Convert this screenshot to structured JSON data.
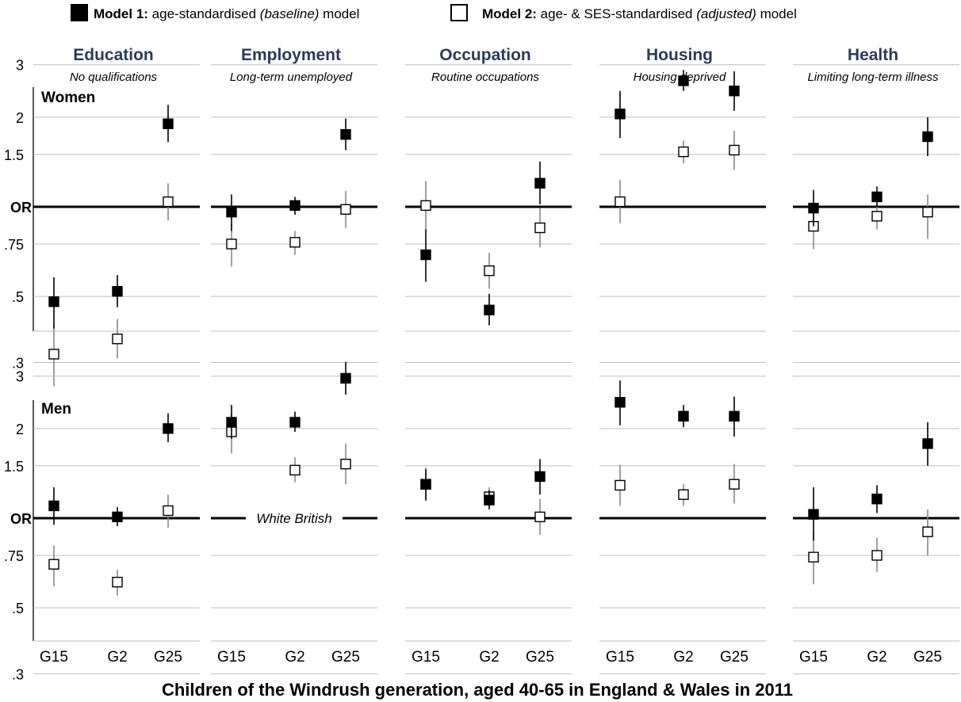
{
  "chart_data": {
    "type": "scatter",
    "legend": {
      "placement": "top",
      "items": [
        {
          "key": "m1",
          "bold": "Model 1:",
          "text": " age-standardised ",
          "italic": "(baseline)",
          "suffix": " model",
          "marker": "filled"
        },
        {
          "key": "m2",
          "bold": "Model 2:",
          "text": " age- & SES-standardised ",
          "italic": "(adjusted)",
          "suffix": " model",
          "marker": "hollow"
        }
      ]
    },
    "xlabel": "Children of the Windrush generation, aged 40-65 in England & Wales in 2011",
    "categories": [
      "G15",
      "G2",
      "G25"
    ],
    "reference_label": "OR",
    "reference_value": 1,
    "reference_note": "White British",
    "y_scale": "log",
    "ylim": [
      0.2,
      3.7
    ],
    "yticks": [
      {
        "value": 3,
        "label": "3"
      },
      {
        "value": 2,
        "label": "2"
      },
      {
        "value": 1.5,
        "label": "1.5"
      },
      {
        "value": 0.75,
        "label": ".75"
      },
      {
        "value": 0.5,
        "label": ".5"
      },
      {
        "value": 0.3,
        "label": ".3"
      }
    ],
    "grid": true,
    "rows": [
      {
        "label": "Women"
      },
      {
        "label": "Men"
      }
    ],
    "panels": [
      {
        "title": "Education",
        "subtitle": "No qualifications",
        "women": {
          "m1": [
            {
              "or": 0.48,
              "lo": 0.39,
              "hi": 0.58
            },
            {
              "or": 0.52,
              "lo": 0.46,
              "hi": 0.59
            },
            {
              "or": 1.9,
              "lo": 1.65,
              "hi": 2.2
            }
          ],
          "m2": [
            {
              "or": 0.32,
              "lo": 0.25,
              "hi": 0.4
            },
            {
              "or": 0.36,
              "lo": 0.31,
              "hi": 0.42
            },
            {
              "or": 1.04,
              "lo": 0.9,
              "hi": 1.2
            }
          ]
        },
        "men": {
          "m1": [
            {
              "or": 1.1,
              "lo": 0.95,
              "hi": 1.27
            },
            {
              "or": 1.01,
              "lo": 0.94,
              "hi": 1.09
            },
            {
              "or": 2.0,
              "lo": 1.8,
              "hi": 2.25
            }
          ],
          "m2": [
            {
              "or": 0.7,
              "lo": 0.59,
              "hi": 0.81
            },
            {
              "or": 0.61,
              "lo": 0.55,
              "hi": 0.67
            },
            {
              "or": 1.06,
              "lo": 0.93,
              "hi": 1.2
            }
          ]
        }
      },
      {
        "title": "Employment",
        "subtitle": "Long-term unemployed",
        "women": {
          "m1": [
            {
              "or": 0.96,
              "lo": 0.83,
              "hi": 1.1
            },
            {
              "or": 1.01,
              "lo": 0.94,
              "hi": 1.08
            },
            {
              "or": 1.75,
              "lo": 1.55,
              "hi": 1.98
            }
          ],
          "m2": [
            {
              "or": 0.75,
              "lo": 0.63,
              "hi": 0.88
            },
            {
              "or": 0.76,
              "lo": 0.69,
              "hi": 0.83
            },
            {
              "or": 0.98,
              "lo": 0.85,
              "hi": 1.13
            }
          ]
        },
        "men": {
          "m1": [
            {
              "or": 2.1,
              "lo": 1.85,
              "hi": 2.4
            },
            {
              "or": 2.1,
              "lo": 1.95,
              "hi": 2.28
            },
            {
              "or": 2.95,
              "lo": 2.6,
              "hi": 3.35
            }
          ],
          "m2": [
            {
              "or": 1.95,
              "lo": 1.65,
              "hi": 2.25
            },
            {
              "or": 1.45,
              "lo": 1.32,
              "hi": 1.6
            },
            {
              "or": 1.52,
              "lo": 1.3,
              "hi": 1.78
            }
          ]
        }
      },
      {
        "title": "Occupation",
        "subtitle": "Routine occupations",
        "women": {
          "m1": [
            {
              "or": 0.69,
              "lo": 0.56,
              "hi": 0.84
            },
            {
              "or": 0.45,
              "lo": 0.4,
              "hi": 0.51
            },
            {
              "or": 1.2,
              "lo": 1.02,
              "hi": 1.42
            }
          ],
          "m2": [
            {
              "or": 1.01,
              "lo": 0.84,
              "hi": 1.22
            },
            {
              "or": 0.61,
              "lo": 0.53,
              "hi": 0.7
            },
            {
              "or": 0.85,
              "lo": 0.73,
              "hi": 0.99
            }
          ]
        },
        "men": {
          "m1": [
            {
              "or": 1.3,
              "lo": 1.15,
              "hi": 1.46
            },
            {
              "or": 1.15,
              "lo": 1.07,
              "hi": 1.24
            },
            {
              "or": 1.38,
              "lo": 1.2,
              "hi": 1.58
            }
          ],
          "m2": [
            {
              "or": 1.3,
              "lo": 1.14,
              "hi": 1.48
            },
            {
              "or": 1.18,
              "lo": 1.09,
              "hi": 1.27
            },
            {
              "or": 1.01,
              "lo": 0.88,
              "hi": 1.16
            }
          ]
        }
      },
      {
        "title": "Housing",
        "subtitle": "Housing deprived",
        "women": {
          "m1": [
            {
              "or": 2.05,
              "lo": 1.7,
              "hi": 2.45
            },
            {
              "or": 2.65,
              "lo": 2.45,
              "hi": 2.88
            },
            {
              "or": 2.45,
              "lo": 2.1,
              "hi": 2.85
            }
          ],
          "m2": [
            {
              "or": 1.04,
              "lo": 0.88,
              "hi": 1.23
            },
            {
              "or": 1.53,
              "lo": 1.4,
              "hi": 1.67
            },
            {
              "or": 1.55,
              "lo": 1.33,
              "hi": 1.8
            }
          ]
        },
        "men": {
          "m1": [
            {
              "or": 2.45,
              "lo": 2.05,
              "hi": 2.9
            },
            {
              "or": 2.2,
              "lo": 2.02,
              "hi": 2.4
            },
            {
              "or": 2.2,
              "lo": 1.88,
              "hi": 2.56
            }
          ],
          "m2": [
            {
              "or": 1.29,
              "lo": 1.1,
              "hi": 1.51
            },
            {
              "or": 1.2,
              "lo": 1.1,
              "hi": 1.3
            },
            {
              "or": 1.3,
              "lo": 1.12,
              "hi": 1.52
            }
          ]
        }
      },
      {
        "title": "Health",
        "subtitle": "Limiting long-term illness",
        "women": {
          "m1": [
            {
              "or": 0.99,
              "lo": 0.86,
              "hi": 1.14
            },
            {
              "or": 1.08,
              "lo": 1.0,
              "hi": 1.17
            },
            {
              "or": 1.72,
              "lo": 1.48,
              "hi": 2.0
            }
          ],
          "m2": [
            {
              "or": 0.86,
              "lo": 0.72,
              "hi": 1.02
            },
            {
              "or": 0.93,
              "lo": 0.84,
              "hi": 1.02
            },
            {
              "or": 0.96,
              "lo": 0.78,
              "hi": 1.1
            }
          ]
        },
        "men": {
          "m1": [
            {
              "or": 1.03,
              "lo": 0.84,
              "hi": 1.27
            },
            {
              "or": 1.16,
              "lo": 1.04,
              "hi": 1.29
            },
            {
              "or": 1.78,
              "lo": 1.5,
              "hi": 2.1
            }
          ],
          "m2": [
            {
              "or": 0.74,
              "lo": 0.6,
              "hi": 0.91
            },
            {
              "or": 0.75,
              "lo": 0.66,
              "hi": 0.86
            },
            {
              "or": 0.9,
              "lo": 0.75,
              "hi": 1.07
            }
          ]
        }
      }
    ]
  }
}
